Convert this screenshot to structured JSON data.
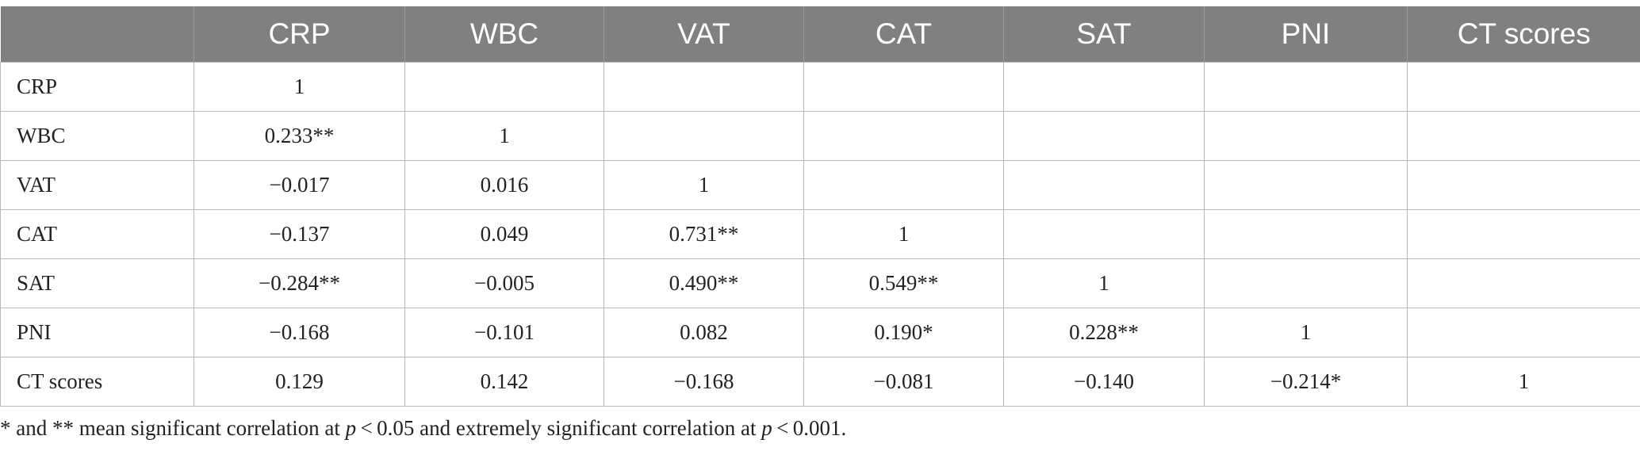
{
  "table": {
    "columns": [
      "",
      "CRP",
      "WBC",
      "VAT",
      "CAT",
      "SAT",
      "PNI",
      "CT scores"
    ],
    "rows": [
      {
        "label": "CRP",
        "cells": [
          "1",
          "",
          "",
          "",
          "",
          "",
          ""
        ]
      },
      {
        "label": "WBC",
        "cells": [
          "0.233**",
          "1",
          "",
          "",
          "",
          "",
          ""
        ]
      },
      {
        "label": "VAT",
        "cells": [
          "−0.017",
          "0.016",
          "1",
          "",
          "",
          "",
          ""
        ]
      },
      {
        "label": "CAT",
        "cells": [
          "−0.137",
          "0.049",
          "0.731**",
          "1",
          "",
          "",
          ""
        ]
      },
      {
        "label": "SAT",
        "cells": [
          "−0.284**",
          "−0.005",
          "0.490**",
          "0.549**",
          "1",
          "",
          ""
        ]
      },
      {
        "label": "PNI",
        "cells": [
          "−0.168",
          "−0.101",
          "0.082",
          "0.190*",
          "0.228**",
          "1",
          ""
        ]
      },
      {
        "label": "CT scores",
        "cells": [
          "0.129",
          "0.142",
          "−0.168",
          "−0.081",
          "−0.140",
          "−0.214*",
          "1"
        ]
      }
    ]
  },
  "footnote": {
    "part1": "* and ** mean significant correlation at ",
    "p1": "p",
    "part2": " < 0.05 and extremely significant correlation at ",
    "p2": "p",
    "part3": " < 0.001."
  },
  "colors": {
    "header_bg": "#808080",
    "header_text": "#ffffff",
    "grid": "#b8b8b8"
  }
}
